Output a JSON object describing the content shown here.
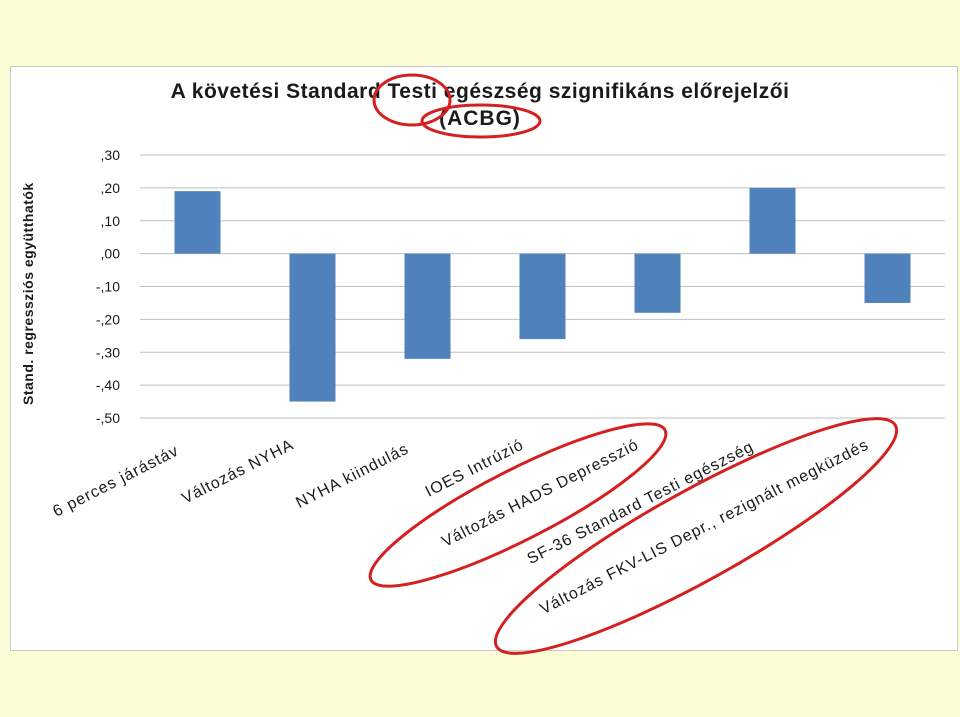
{
  "chart_data": {
    "type": "bar",
    "title": "A követési Standard Testi egészség szignifikáns előrejelzői",
    "subtitle": "(ACBG)",
    "ylabel": "Stand. regressziós együtthatók",
    "xlabel": "",
    "ylim": [
      -0.5,
      0.3
    ],
    "yticks": [
      0.3,
      0.2,
      0.1,
      0.0,
      -0.1,
      -0.2,
      -0.3,
      -0.4,
      -0.5
    ],
    "ytick_labels": [
      ",30",
      ",20",
      ",10",
      ",00",
      "-,10",
      "-,20",
      "-,30",
      "-,40",
      "-,50"
    ],
    "grid": true,
    "categories": [
      "6 perces járástáv",
      "Változás NYHA",
      "NYHA kiindulás",
      "IOES Intrúzió",
      "Változás HADS Depresszió",
      "SF-36 Standard Testi egészség",
      "Változás FKV-LIS Depr., rezignált megküzdés"
    ],
    "values": [
      0.19,
      -0.45,
      -0.32,
      -0.26,
      -0.18,
      0.2,
      -0.15
    ],
    "bar_color": "#4f81bd",
    "annotation_color": "#d42020"
  }
}
